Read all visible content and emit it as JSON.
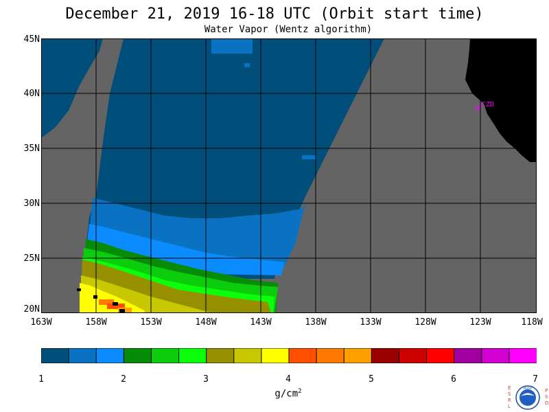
{
  "header": {
    "title": "December 21, 2019  16-18 UTC  (Orbit start time)",
    "subtitle": "Water Vapor (Wentz algorithm)"
  },
  "map": {
    "lat_labels": [
      "45N",
      "40N",
      "35N",
      "30N",
      "25N",
      "20N"
    ],
    "lon_labels": [
      "163W",
      "158W",
      "153W",
      "148W",
      "143W",
      "138W",
      "133W",
      "128W",
      "123W",
      "118W"
    ],
    "station_label": "CZD",
    "colors": {
      "no_data": "#646464",
      "land": "#000000",
      "grid": "#000000",
      "station": "#ff00ff"
    }
  },
  "legend": {
    "ticks": [
      "1",
      "2",
      "3",
      "4",
      "5",
      "6",
      "7"
    ],
    "units_base": "g/cm",
    "units_exp": "2",
    "colors": [
      "#004e7a",
      "#0a72c2",
      "#0a8cff",
      "#078c07",
      "#0bcd0b",
      "#0bff0b",
      "#968f00",
      "#c8c800",
      "#ffff00",
      "#ff5000",
      "#ff7a00",
      "#ffa000",
      "#9b0000",
      "#cd0000",
      "#ff0000",
      "#a000a0",
      "#d200d2",
      "#ff00ff"
    ]
  },
  "logo": {
    "left_letters": "ESRL",
    "right_letters": "PSD",
    "center_text": "NOAA"
  }
}
